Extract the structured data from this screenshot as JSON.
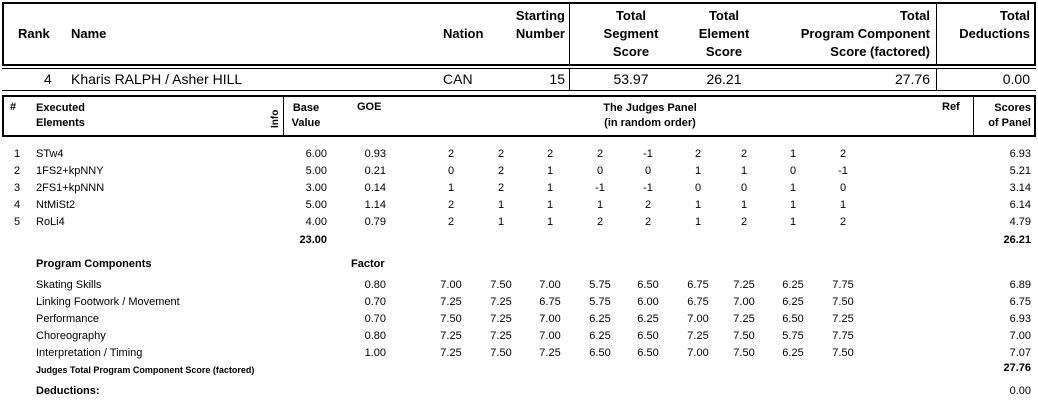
{
  "header": {
    "rank_label": "Rank",
    "name_label": "Name",
    "nation_label": "Nation",
    "starting_number_label": [
      "Starting",
      "Number"
    ],
    "total_segment_label": [
      "Total",
      "Segment",
      "Score"
    ],
    "total_element_label": [
      "Total",
      "Element",
      "Score"
    ],
    "total_pcs_label": [
      "Total",
      "Program Component",
      "Score (factored)"
    ],
    "total_deductions_label": [
      "Total",
      "Deductions"
    ]
  },
  "skater": {
    "rank": "4",
    "name": "Kharis RALPH / Asher HILL",
    "nation": "CAN",
    "starting_number": "15",
    "total_segment_score": "53.97",
    "total_element_score": "26.21",
    "total_pcs": "27.76",
    "total_deductions": "0.00"
  },
  "elements_header": {
    "num": "#",
    "executed_elements": [
      "Executed",
      "Elements"
    ],
    "info": "Info",
    "base_value": [
      "Base",
      "Value"
    ],
    "goe": "GOE",
    "judges_panel": [
      "The Judges Panel",
      "(in random order)"
    ],
    "ref": "Ref",
    "scores_of_panel": [
      "Scores",
      "of Panel"
    ]
  },
  "elements": [
    {
      "num": "1",
      "name": "STw4",
      "base": "6.00",
      "goe": "0.93",
      "judges": [
        "2",
        "2",
        "2",
        "2",
        "-1",
        "2",
        "2",
        "1",
        "2"
      ],
      "score": "6.93"
    },
    {
      "num": "2",
      "name": "1FS2+kpNNY",
      "base": "5.00",
      "goe": "0.21",
      "judges": [
        "0",
        "2",
        "1",
        "0",
        "0",
        "1",
        "1",
        "0",
        "-1"
      ],
      "score": "5.21"
    },
    {
      "num": "3",
      "name": "2FS1+kpNNN",
      "base": "3.00",
      "goe": "0.14",
      "judges": [
        "1",
        "2",
        "1",
        "-1",
        "-1",
        "0",
        "0",
        "1",
        "0"
      ],
      "score": "3.14"
    },
    {
      "num": "4",
      "name": "NtMiSt2",
      "base": "5.00",
      "goe": "1.14",
      "judges": [
        "2",
        "1",
        "1",
        "1",
        "2",
        "1",
        "1",
        "1",
        "1"
      ],
      "score": "6.14"
    },
    {
      "num": "5",
      "name": "RoLi4",
      "base": "4.00",
      "goe": "0.79",
      "judges": [
        "2",
        "1",
        "1",
        "2",
        "2",
        "1",
        "2",
        "1",
        "2"
      ],
      "score": "4.79"
    }
  ],
  "elements_total": {
    "base": "23.00",
    "score": "26.21"
  },
  "program_components": {
    "title": "Program Components",
    "factor_label": "Factor",
    "rows": [
      {
        "name": "Skating Skills",
        "factor": "0.80",
        "judges": [
          "7.00",
          "7.50",
          "7.00",
          "5.75",
          "6.50",
          "6.75",
          "7.25",
          "6.25",
          "7.75"
        ],
        "score": "6.89"
      },
      {
        "name": "Linking Footwork / Movement",
        "factor": "0.70",
        "judges": [
          "7.25",
          "7.25",
          "6.75",
          "5.75",
          "6.00",
          "6.75",
          "7.00",
          "6.25",
          "7.50"
        ],
        "score": "6.75"
      },
      {
        "name": "Performance",
        "factor": "0.70",
        "judges": [
          "7.50",
          "7.25",
          "7.00",
          "6.25",
          "6.25",
          "7.00",
          "7.25",
          "6.50",
          "7.25"
        ],
        "score": "6.93"
      },
      {
        "name": "Choreography",
        "factor": "0.80",
        "judges": [
          "7.25",
          "7.25",
          "7.00",
          "6.25",
          "6.50",
          "7.25",
          "7.50",
          "5.75",
          "7.75"
        ],
        "score": "7.00"
      },
      {
        "name": "Interpretation / Timing",
        "factor": "1.00",
        "judges": [
          "7.25",
          "7.50",
          "7.25",
          "6.50",
          "6.50",
          "7.00",
          "7.50",
          "6.25",
          "7.50"
        ],
        "score": "7.07"
      }
    ],
    "total_label": "Judges Total Program Component Score (factored)",
    "total": "27.76"
  },
  "deductions": {
    "label": "Deductions:",
    "value": "0.00"
  }
}
